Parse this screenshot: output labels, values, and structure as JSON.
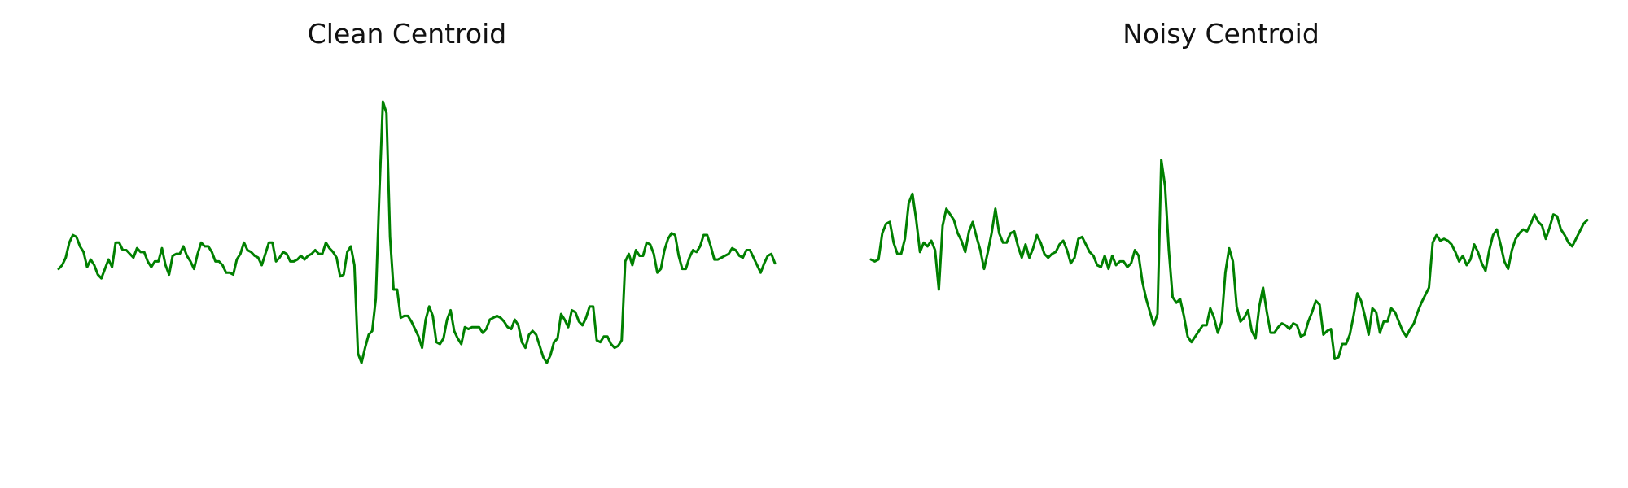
{
  "chart_data": [
    {
      "type": "line",
      "title": "Clean Centroid",
      "xlabel": "",
      "ylabel": "",
      "axes_visible": false,
      "grid": false,
      "ylim": [
        -1.0,
        1.0
      ],
      "series": [
        {
          "color": "#008000",
          "values": [
            -0.02,
            0.0,
            0.04,
            0.12,
            0.16,
            0.15,
            0.1,
            0.07,
            -0.01,
            0.03,
            0.0,
            -0.05,
            -0.07,
            -0.02,
            0.03,
            -0.01,
            0.12,
            0.12,
            0.08,
            0.08,
            0.06,
            0.04,
            0.09,
            0.07,
            0.07,
            0.02,
            -0.01,
            0.02,
            0.02,
            0.09,
            0.0,
            -0.05,
            0.05,
            0.06,
            0.06,
            0.1,
            0.05,
            0.02,
            -0.02,
            0.06,
            0.12,
            0.1,
            0.1,
            0.07,
            0.02,
            0.02,
            0.0,
            -0.04,
            -0.04,
            -0.05,
            0.03,
            0.06,
            0.12,
            0.08,
            0.07,
            0.05,
            0.04,
            0.0,
            0.06,
            0.12,
            0.12,
            0.02,
            0.04,
            0.07,
            0.06,
            0.02,
            0.02,
            0.03,
            0.05,
            0.03,
            0.05,
            0.06,
            0.08,
            0.06,
            0.06,
            0.12,
            0.09,
            0.07,
            0.04,
            -0.06,
            -0.05,
            0.07,
            0.1,
            0.0,
            -0.47,
            -0.52,
            -0.44,
            -0.37,
            -0.35,
            -0.18,
            0.38,
            0.87,
            0.81,
            0.15,
            -0.13,
            -0.13,
            -0.28,
            -0.27,
            -0.27,
            -0.3,
            -0.34,
            -0.38,
            -0.44,
            -0.29,
            -0.22,
            -0.27,
            -0.41,
            -0.42,
            -0.39,
            -0.29,
            -0.24,
            -0.35,
            -0.39,
            -0.42,
            -0.33,
            -0.34,
            -0.33,
            -0.33,
            -0.33,
            -0.36,
            -0.34,
            -0.29,
            -0.28,
            -0.27,
            -0.28,
            -0.3,
            -0.33,
            -0.34,
            -0.29,
            -0.32,
            -0.41,
            -0.44,
            -0.37,
            -0.35,
            -0.37,
            -0.43,
            -0.49,
            -0.52,
            -0.48,
            -0.41,
            -0.39,
            -0.26,
            -0.29,
            -0.33,
            -0.24,
            -0.25,
            -0.3,
            -0.32,
            -0.28,
            -0.22,
            -0.22,
            -0.4,
            -0.41,
            -0.38,
            -0.38,
            -0.42,
            -0.44,
            -0.43,
            -0.4,
            0.02,
            0.06,
            0.0,
            0.08,
            0.05,
            0.05,
            0.12,
            0.11,
            0.06,
            -0.04,
            -0.02,
            0.08,
            0.14,
            0.17,
            0.16,
            0.05,
            -0.02,
            -0.02,
            0.04,
            0.08,
            0.07,
            0.1,
            0.16,
            0.16,
            0.1,
            0.03,
            0.03,
            0.04,
            0.05,
            0.06,
            0.09,
            0.08,
            0.05,
            0.04,
            0.08,
            0.08,
            0.04,
            0.0,
            -0.04,
            0.01,
            0.05,
            0.06,
            0.01
          ]
        }
      ]
    },
    {
      "type": "line",
      "title": "Noisy Centroid",
      "xlabel": "",
      "ylabel": "",
      "axes_visible": false,
      "grid": false,
      "ylim": [
        -1.0,
        1.0
      ],
      "series": [
        {
          "color": "#008000",
          "values": [
            0.03,
            0.02,
            0.03,
            0.17,
            0.22,
            0.23,
            0.12,
            0.06,
            0.06,
            0.14,
            0.33,
            0.38,
            0.24,
            0.07,
            0.12,
            0.1,
            0.13,
            0.08,
            -0.13,
            0.21,
            0.3,
            0.27,
            0.24,
            0.17,
            0.13,
            0.07,
            0.18,
            0.23,
            0.15,
            0.08,
            -0.02,
            0.07,
            0.17,
            0.3,
            0.17,
            0.12,
            0.12,
            0.17,
            0.18,
            0.1,
            0.04,
            0.11,
            0.04,
            0.09,
            0.16,
            0.12,
            0.06,
            0.04,
            0.06,
            0.07,
            0.11,
            0.13,
            0.08,
            0.01,
            0.04,
            0.14,
            0.15,
            0.11,
            0.07,
            0.05,
            0.0,
            -0.01,
            0.05,
            -0.02,
            0.05,
            0.0,
            0.02,
            0.02,
            -0.01,
            0.01,
            0.08,
            0.05,
            -0.09,
            -0.18,
            -0.25,
            -0.32,
            -0.26,
            0.56,
            0.42,
            0.08,
            -0.17,
            -0.2,
            -0.18,
            -0.27,
            -0.38,
            -0.41,
            -0.38,
            -0.35,
            -0.32,
            -0.32,
            -0.23,
            -0.28,
            -0.36,
            -0.3,
            -0.04,
            0.09,
            0.02,
            -0.22,
            -0.3,
            -0.28,
            -0.24,
            -0.35,
            -0.39,
            -0.22,
            -0.12,
            -0.25,
            -0.36,
            -0.36,
            -0.33,
            -0.31,
            -0.32,
            -0.34,
            -0.31,
            -0.32,
            -0.38,
            -0.37,
            -0.3,
            -0.25,
            -0.19,
            -0.21,
            -0.37,
            -0.35,
            -0.34,
            -0.5,
            -0.49,
            -0.42,
            -0.42,
            -0.37,
            -0.27,
            -0.15,
            -0.19,
            -0.27,
            -0.37,
            -0.23,
            -0.25,
            -0.36,
            -0.3,
            -0.3,
            -0.23,
            -0.25,
            -0.3,
            -0.35,
            -0.38,
            -0.34,
            -0.31,
            -0.25,
            -0.2,
            -0.16,
            -0.12,
            0.12,
            0.16,
            0.13,
            0.14,
            0.13,
            0.11,
            0.07,
            0.02,
            0.05,
            0.0,
            0.03,
            0.11,
            0.07,
            0.01,
            -0.03,
            0.08,
            0.16,
            0.19,
            0.11,
            0.02,
            -0.02,
            0.08,
            0.14,
            0.17,
            0.19,
            0.18,
            0.22,
            0.27,
            0.23,
            0.21,
            0.14,
            0.2,
            0.27,
            0.26,
            0.19,
            0.16,
            0.12,
            0.1,
            0.14,
            0.18,
            0.22,
            0.24
          ]
        }
      ]
    }
  ]
}
